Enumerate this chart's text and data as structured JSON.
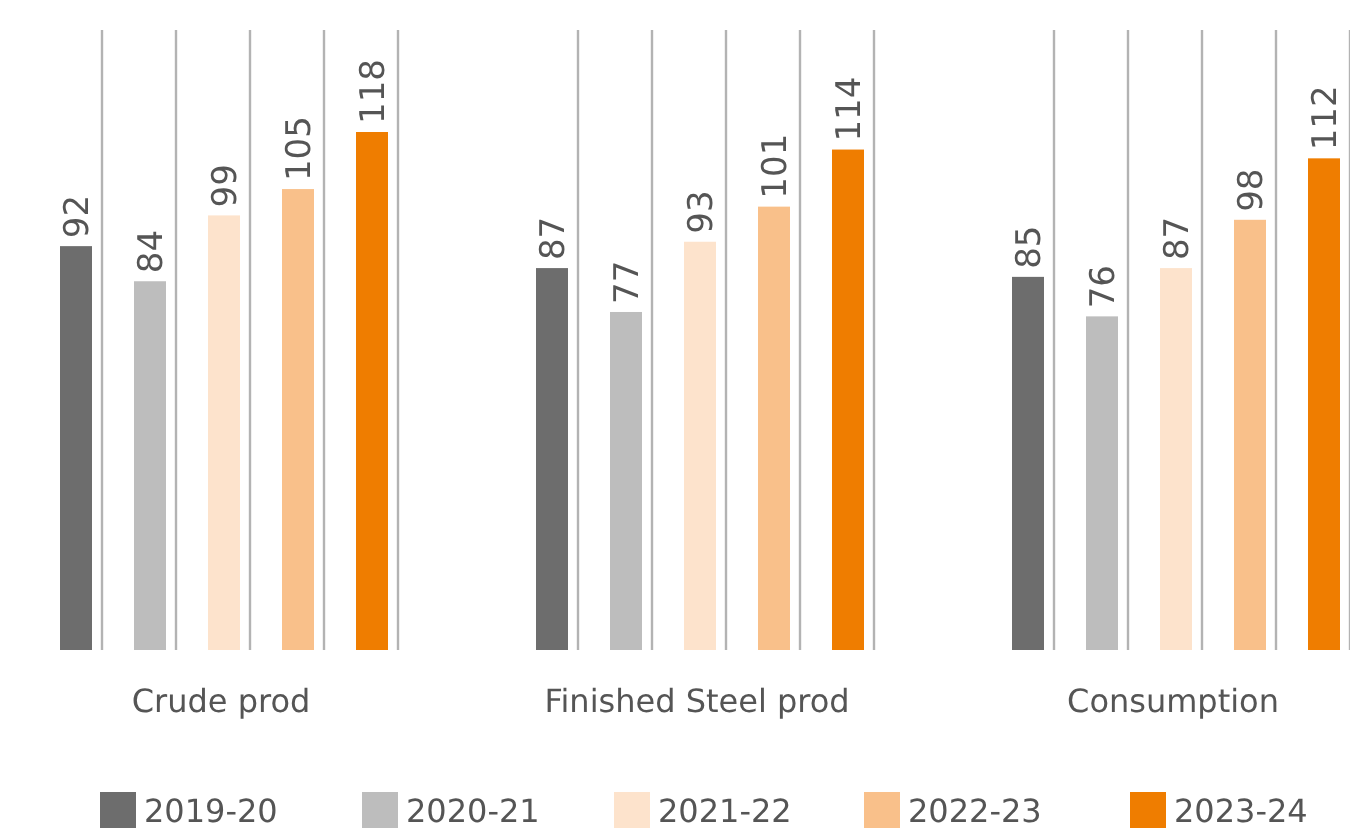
{
  "chart_data": {
    "type": "bar",
    "categories": [
      "Crude prod",
      "Finished Steel prod",
      "Consumption"
    ],
    "series": [
      {
        "name": "2019-20",
        "color": "#6d6d6d",
        "values": [
          92,
          87,
          85
        ]
      },
      {
        "name": "2020-21",
        "color": "#bdbdbd",
        "values": [
          84,
          77,
          76
        ]
      },
      {
        "name": "2021-22",
        "color": "#fde3cc",
        "values": [
          99,
          93,
          87
        ]
      },
      {
        "name": "2022-23",
        "color": "#f9c08a",
        "values": [
          105,
          101,
          98
        ]
      },
      {
        "name": "2023-24",
        "color": "#ef7d00",
        "values": [
          118,
          114,
          112
        ]
      }
    ],
    "data_labels": true,
    "legend": "bottom"
  }
}
